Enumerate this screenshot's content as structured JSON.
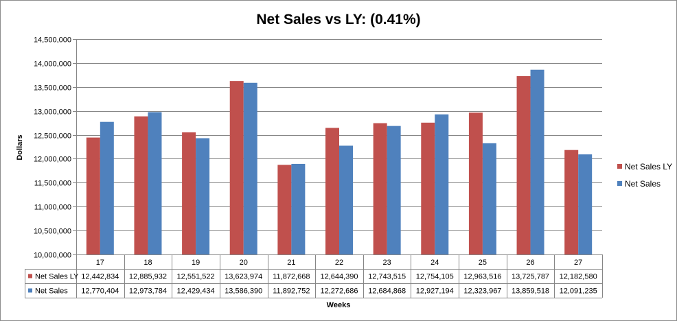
{
  "chart_data": {
    "type": "bar",
    "title": "Net Sales vs LY: (0.41%)",
    "xlabel": "Weeks",
    "ylabel": "Dollars",
    "ylim": [
      10000000,
      14500000
    ],
    "y_ticks": [
      "10,000,000",
      "10,500,000",
      "11,000,000",
      "11,500,000",
      "12,000,000",
      "12,500,000",
      "13,000,000",
      "13,500,000",
      "14,000,000",
      "14,500,000"
    ],
    "y_tick_values": [
      10000000,
      10500000,
      11000000,
      11500000,
      12000000,
      12500000,
      13000000,
      13500000,
      14000000,
      14500000
    ],
    "grid": true,
    "legend_position": "right",
    "categories": [
      "17",
      "18",
      "19",
      "20",
      "21",
      "22",
      "23",
      "24",
      "25",
      "26",
      "27"
    ],
    "series": [
      {
        "name": "Net Sales LY",
        "color": "#c0504d",
        "values": [
          12442834,
          12885932,
          12551522,
          13623974,
          11872668,
          12644390,
          12743515,
          12754105,
          12963516,
          13725787,
          12182580
        ],
        "labels": [
          "12,442,834",
          "12,885,932",
          "12,551,522",
          "13,623,974",
          "11,872,668",
          "12,644,390",
          "12,743,515",
          "12,754,105",
          "12,963,516",
          "13,725,787",
          "12,182,580"
        ]
      },
      {
        "name": "Net Sales",
        "color": "#4f81bd",
        "values": [
          12770404,
          12973784,
          12429434,
          13586390,
          11892752,
          12272686,
          12684868,
          12927194,
          12323967,
          13859518,
          12091235
        ],
        "labels": [
          "12,770,404",
          "12,973,784",
          "12,429,434",
          "13,586,390",
          "11,892,752",
          "12,272,686",
          "12,684,868",
          "12,927,194",
          "12,323,967",
          "13,859,518",
          "12,091,235"
        ]
      }
    ]
  }
}
